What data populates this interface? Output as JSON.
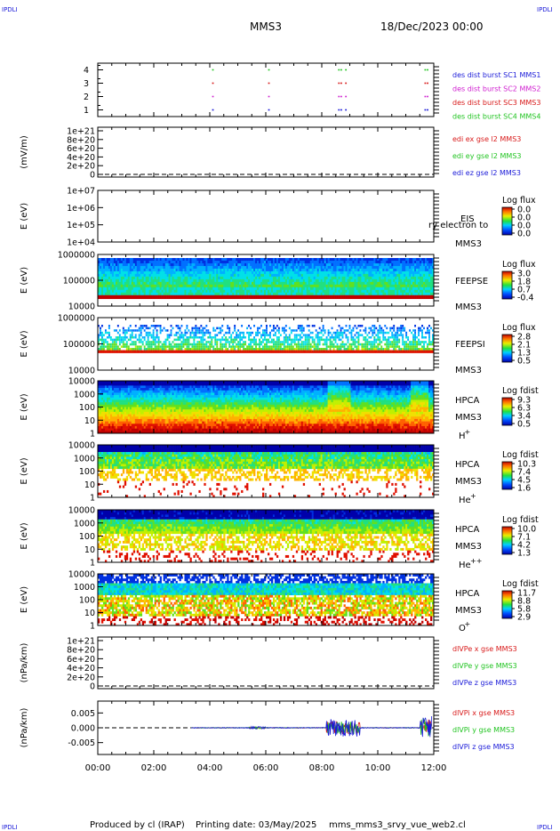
{
  "corner_marks": {
    "tl": "IPDLI",
    "tr": "IPDLI",
    "bl": "IPDLI",
    "br": "IPDLI"
  },
  "header": {
    "title": "MMS3",
    "date": "18/Dec/2023 00:00"
  },
  "footer": {
    "produced": "Produced by cl (IRAP)",
    "printing": "Printing date: 03/May/2025",
    "script": "mms_mms3_srvy_vue_web2.cl"
  },
  "colors": {
    "red": "#d81a1a",
    "magenta": "#d020d0",
    "green": "#22c422",
    "blue": "#1a1ad8"
  },
  "chart_data": [
    {
      "type": "scatter",
      "panel": "burst availability",
      "x_range": [
        "00:00",
        "12:00"
      ],
      "yticks": [
        "4",
        "3",
        "2",
        "1"
      ],
      "ylim": [
        0.5,
        4.5
      ],
      "series": [
        {
          "name": "des dist burst SC1 MMS1",
          "color": "#1a1ad8",
          "y": 1,
          "x": [
            "04:05",
            "06:05",
            "08:35",
            "08:40",
            "08:50",
            "11:40",
            "11:45"
          ]
        },
        {
          "name": "des dist burst SC2 MMS2",
          "color": "#d020d0",
          "y": 2,
          "x": [
            "04:05",
            "06:05",
            "08:35",
            "08:40",
            "08:50",
            "11:40",
            "11:45"
          ]
        },
        {
          "name": "des dist burst SC3 MMS3",
          "color": "#d81a1a",
          "y": 3,
          "x": [
            "04:05",
            "06:05",
            "08:35",
            "08:40",
            "08:50",
            "11:40",
            "11:45"
          ]
        },
        {
          "name": "des dist burst SC4 MMS4",
          "color": "#22c422",
          "y": 4,
          "x": [
            "04:05",
            "06:05",
            "08:35",
            "08:40",
            "08:50",
            "11:40",
            "11:45"
          ]
        }
      ]
    },
    {
      "type": "line",
      "panel": "EDI electric field",
      "ylabel": "(mV/m)",
      "yticks": [
        "1e+21",
        "8e+20",
        "6e+20",
        "4e+20",
        "2e+20",
        "0"
      ],
      "ylim": [
        0,
        1e+21
      ],
      "zero_line": true,
      "series": [
        {
          "name": "edi ex gse l2 MMS3",
          "color": "#d81a1a"
        },
        {
          "name": "edi ey gse l2 MMS3",
          "color": "#22c422"
        },
        {
          "name": "edi ez gse l2 MMS3",
          "color": "#1a1ad8"
        }
      ]
    },
    {
      "type": "heatmap",
      "panel": "EIS",
      "ylabel": "E (eV)",
      "yticks": [
        "1e+07",
        "1e+06",
        "1e+05",
        "1e+04"
      ],
      "yscale": "log",
      "instrument": "EIS",
      "spacecraft": "MMS3",
      "colorbar": {
        "title": "Log flux",
        "ticks": [
          "0.0",
          "0.0",
          "0.0",
          "0.0"
        ]
      },
      "overlay_text": "ry electron to",
      "empty": true
    },
    {
      "type": "heatmap",
      "panel": "FEEPS electrons",
      "ylabel": "E (eV)",
      "yticks": [
        "1000000",
        "100000",
        "10000"
      ],
      "yscale": "log",
      "instrument": "FEEPSE",
      "spacecraft": "MMS3",
      "colorbar": {
        "title": "Log flux",
        "ticks": [
          "3.0",
          "1.8",
          "0.7",
          "-0.4"
        ]
      }
    },
    {
      "type": "heatmap",
      "panel": "FEEPS ions",
      "ylabel": "E (eV)",
      "yticks": [
        "1000000",
        "100000",
        "10000"
      ],
      "yscale": "log",
      "instrument": "FEEPSI",
      "spacecraft": "MMS3",
      "colorbar": {
        "title": "Log flux",
        "ticks": [
          "2.8",
          "2.1",
          "1.3",
          "0.5"
        ]
      }
    },
    {
      "type": "heatmap",
      "panel": "HPCA H+",
      "ylabel": "E (eV)",
      "yticks": [
        "10000",
        "1000",
        "100",
        "10",
        "1"
      ],
      "yscale": "log",
      "instrument": "HPCA",
      "spacecraft": "MMS3",
      "species": "H",
      "charge": "+",
      "colorbar": {
        "title": "Log fdist",
        "ticks": [
          "9.3",
          "6.3",
          "3.4",
          "0.5"
        ]
      }
    },
    {
      "type": "heatmap",
      "panel": "HPCA He+",
      "ylabel": "E (eV)",
      "yticks": [
        "10000",
        "1000",
        "100",
        "10",
        "1"
      ],
      "yscale": "log",
      "instrument": "HPCA",
      "spacecraft": "MMS3",
      "species": "He",
      "charge": "+",
      "colorbar": {
        "title": "Log fdist",
        "ticks": [
          "10.3",
          "7.4",
          "4.5",
          "1.6"
        ]
      }
    },
    {
      "type": "heatmap",
      "panel": "HPCA He++",
      "ylabel": "E (eV)",
      "yticks": [
        "10000",
        "1000",
        "100",
        "10",
        "1"
      ],
      "yscale": "log",
      "instrument": "HPCA",
      "spacecraft": "MMS3",
      "species": "He",
      "charge": "++",
      "colorbar": {
        "title": "Log fdist",
        "ticks": [
          "10.0",
          "7.1",
          "4.2",
          "1.3"
        ]
      }
    },
    {
      "type": "heatmap",
      "panel": "HPCA O+",
      "ylabel": "E (eV)",
      "yticks": [
        "10000",
        "1000",
        "100",
        "10",
        "1"
      ],
      "yscale": "log",
      "instrument": "HPCA",
      "spacecraft": "MMS3",
      "species": "O",
      "charge": "+",
      "colorbar": {
        "title": "Log fdist",
        "ticks": [
          "11.7",
          "8.8",
          "5.8",
          "2.9"
        ]
      }
    },
    {
      "type": "line",
      "panel": "electron pressure gradient",
      "ylabel": "(nPa/km)",
      "yticks": [
        "1e+21",
        "8e+20",
        "6e+20",
        "4e+20",
        "2e+20",
        "0"
      ],
      "ylim": [
        0,
        1e+21
      ],
      "zero_line": true,
      "series": [
        {
          "name": "dlVPe x gse MMS3",
          "color": "#d81a1a"
        },
        {
          "name": "dlVPe y gse MMS3",
          "color": "#22c422"
        },
        {
          "name": "dlVPe z gse MMS3",
          "color": "#1a1ad8"
        }
      ]
    },
    {
      "type": "line",
      "panel": "ion pressure gradient",
      "ylabel": "(nPa/km)",
      "yticks": [
        "0.005",
        "0.000",
        "-0.005"
      ],
      "ylim": [
        -0.009,
        0.009
      ],
      "zero_line": true,
      "series": [
        {
          "name": "dlVPi x gse MMS3",
          "color": "#d81a1a"
        },
        {
          "name": "dlVPi y gse MMS3",
          "color": "#22c422"
        },
        {
          "name": "dlVPi z gse MMS3",
          "color": "#1a1ad8"
        }
      ]
    }
  ],
  "xaxis": {
    "ticks": [
      "00:00",
      "02:00",
      "04:00",
      "06:00",
      "08:00",
      "10:00",
      "12:00"
    ]
  }
}
